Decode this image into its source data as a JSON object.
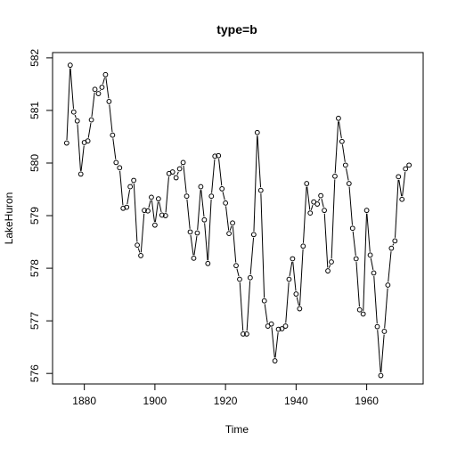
{
  "chart_data": {
    "type": "line",
    "title": "type=b",
    "xlabel": "Time",
    "ylabel": "LakeHuron",
    "xlim": [
      1871,
      1976
    ],
    "ylim": [
      575.8,
      582.1
    ],
    "x_ticks": [
      1880,
      1900,
      1920,
      1940,
      1960
    ],
    "y_ticks": [
      576,
      577,
      578,
      579,
      580,
      581,
      582
    ],
    "x_start": 1875,
    "grid": false,
    "series": [
      {
        "values": [
          580.38,
          581.86,
          580.97,
          580.8,
          579.79,
          580.39,
          580.42,
          580.82,
          581.4,
          581.32,
          581.44,
          581.68,
          581.17,
          580.53,
          580.01,
          579.91,
          579.14,
          579.16,
          579.55,
          579.67,
          578.44,
          578.24,
          579.1,
          579.09,
          579.35,
          578.82,
          579.32,
          579.01,
          579,
          579.8,
          579.83,
          579.72,
          579.89,
          580.01,
          579.37,
          578.69,
          578.19,
          578.67,
          579.55,
          578.92,
          578.09,
          579.37,
          580.13,
          580.14,
          579.51,
          579.24,
          578.66,
          578.86,
          578.05,
          577.79,
          576.75,
          576.75,
          577.82,
          578.64,
          580.58,
          579.48,
          577.38,
          576.9,
          576.94,
          576.24,
          576.84,
          576.85,
          576.9,
          577.79,
          578.18,
          577.51,
          577.23,
          578.42,
          579.61,
          579.05,
          579.26,
          579.22,
          579.38,
          579.1,
          577.95,
          578.12,
          579.75,
          580.85,
          580.41,
          579.96,
          579.61,
          578.76,
          578.18,
          577.21,
          577.13,
          579.1,
          578.25,
          577.91,
          576.89,
          575.96,
          576.8,
          577.68,
          578.38,
          578.52,
          579.74,
          579.31,
          579.89,
          579.96
        ]
      }
    ]
  }
}
